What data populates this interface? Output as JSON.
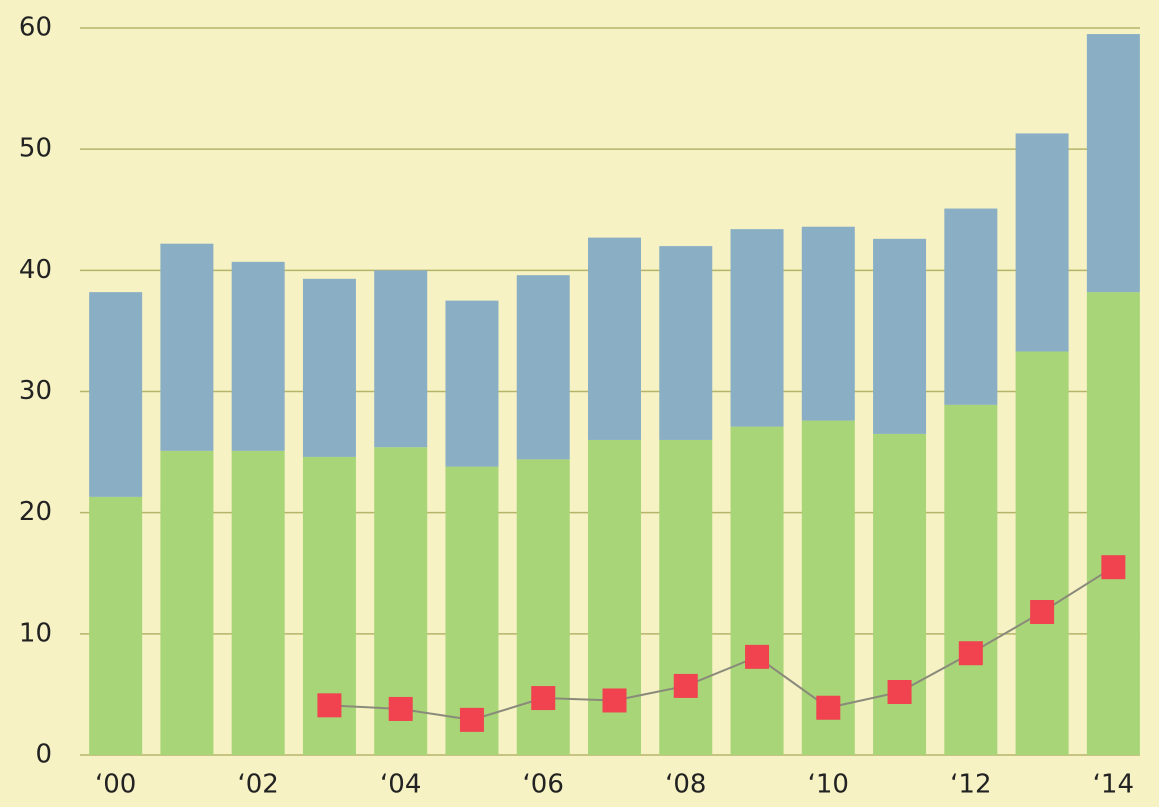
{
  "chart_data": {
    "type": "stacked-bar-line",
    "categories": [
      "‘00",
      null,
      "‘02",
      null,
      "‘04",
      null,
      "‘06",
      null,
      "‘08",
      null,
      "‘10",
      null,
      "‘12",
      null,
      "‘14"
    ],
    "series": [
      {
        "color": "#a8d577",
        "values": [
          21.3,
          25.1,
          25.1,
          24.6,
          25.4,
          23.8,
          24.4,
          26.0,
          26.0,
          27.1,
          27.6,
          26.5,
          28.9,
          33.3,
          38.2
        ]
      },
      {
        "color": "#8aafc4",
        "values": [
          16.9,
          17.1,
          15.6,
          14.7,
          14.6,
          13.7,
          15.2,
          16.7,
          16.0,
          16.3,
          16.0,
          16.1,
          16.2,
          18.0,
          21.3
        ]
      },
      {
        "type": "line",
        "color": "#f0434f",
        "values": [
          null,
          null,
          null,
          4.1,
          3.8,
          2.9,
          4.7,
          4.5,
          5.7,
          8.1,
          3.9,
          5.2,
          8.4,
          11.8,
          15.5
        ]
      }
    ],
    "ylim": [
      0,
      60
    ],
    "yticks": [
      0,
      10,
      20,
      30,
      40,
      50,
      60
    ],
    "grid": true
  }
}
